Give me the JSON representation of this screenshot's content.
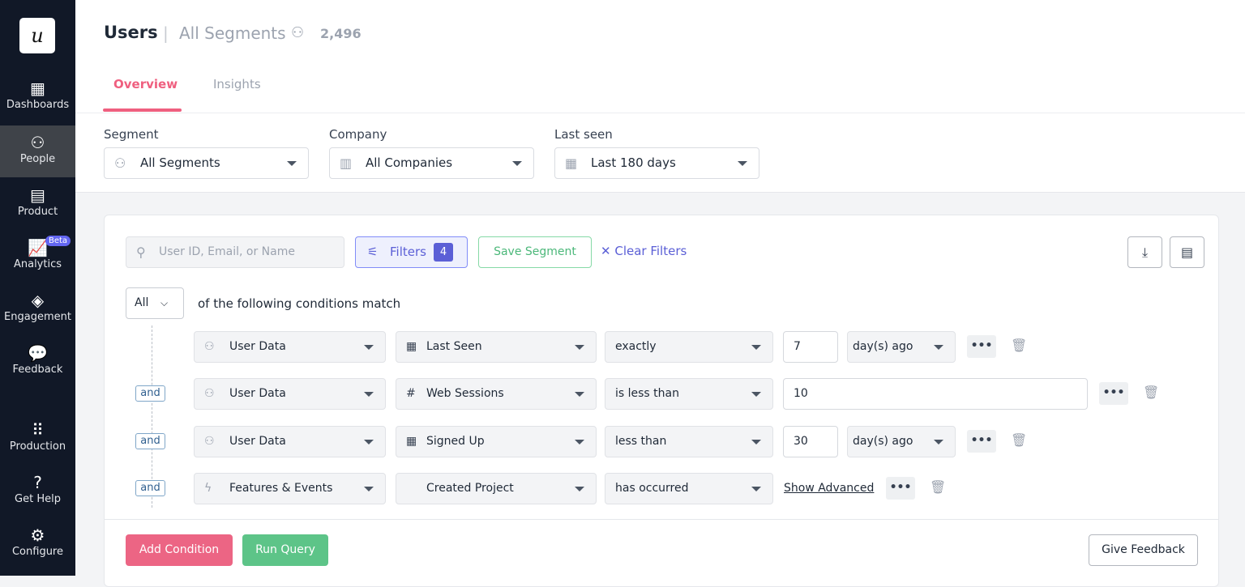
{
  "sidebar": {
    "logo": "u",
    "items": [
      {
        "label": "Dashboards",
        "icon": "dashboard-icon",
        "glyph": "▦"
      },
      {
        "label": "People",
        "icon": "people-icon",
        "glyph": "⚇",
        "active": true
      },
      {
        "label": "Product",
        "icon": "product-icon",
        "glyph": "▤"
      },
      {
        "label": "Analytics",
        "icon": "analytics-icon",
        "glyph": "📈",
        "badge": "Beta"
      },
      {
        "label": "Engagement",
        "icon": "layers-icon",
        "glyph": "◈"
      },
      {
        "label": "Feedback",
        "icon": "chat-icon",
        "glyph": "💬"
      },
      {
        "label": "Production",
        "icon": "grid-icon",
        "glyph": "⠿"
      },
      {
        "label": "Get Help",
        "icon": "help-icon",
        "glyph": "?"
      },
      {
        "label": "Configure",
        "icon": "gear-icon",
        "glyph": "⚙"
      }
    ]
  },
  "header": {
    "title": "Users",
    "separator": "|",
    "subtitle": "All Segments",
    "count": "2,496"
  },
  "tabs": [
    {
      "label": "Overview",
      "active": true
    },
    {
      "label": "Insights"
    }
  ],
  "filters_bar": {
    "segment": {
      "label": "Segment",
      "value": "All Segments"
    },
    "company": {
      "label": "Company",
      "value": "All Companies"
    },
    "last_seen": {
      "label": "Last seen",
      "value": "Last 180 days"
    }
  },
  "toolbar": {
    "search_placeholder": "User ID, Email, or Name",
    "filters_label": "Filters",
    "filters_count": "4",
    "save_segment": "Save Segment",
    "clear_filters": "Clear Filters"
  },
  "match": {
    "value": "All",
    "text": "of the following conditions match"
  },
  "conditions": [
    {
      "connector": "",
      "source": "User Data",
      "field": "Last Seen",
      "field_icon": "calendar-icon",
      "operator": "exactly",
      "value": "7",
      "unit": "day(s) ago"
    },
    {
      "connector": "and",
      "source": "User Data",
      "field": "Web Sessions",
      "field_icon": "hash-icon",
      "operator": "is less than",
      "value": "10"
    },
    {
      "connector": "and",
      "source": "User Data",
      "field": "Signed Up",
      "field_icon": "calendar-icon",
      "operator": "less than",
      "value": "30",
      "unit": "day(s) ago"
    },
    {
      "connector": "and",
      "source": "Features & Events",
      "field": "Created Project",
      "field_icon": "code-icon",
      "operator": "has occurred",
      "link": "Show Advanced"
    }
  ],
  "footer": {
    "add_condition": "Add Condition",
    "run_query": "Run Query",
    "give_feedback": "Give Feedback"
  },
  "colors": {
    "sidebar": "#111827",
    "accent_pink": "#ef5f7f",
    "accent_green": "#5dc488",
    "accent_indigo": "#5b5fd6"
  }
}
